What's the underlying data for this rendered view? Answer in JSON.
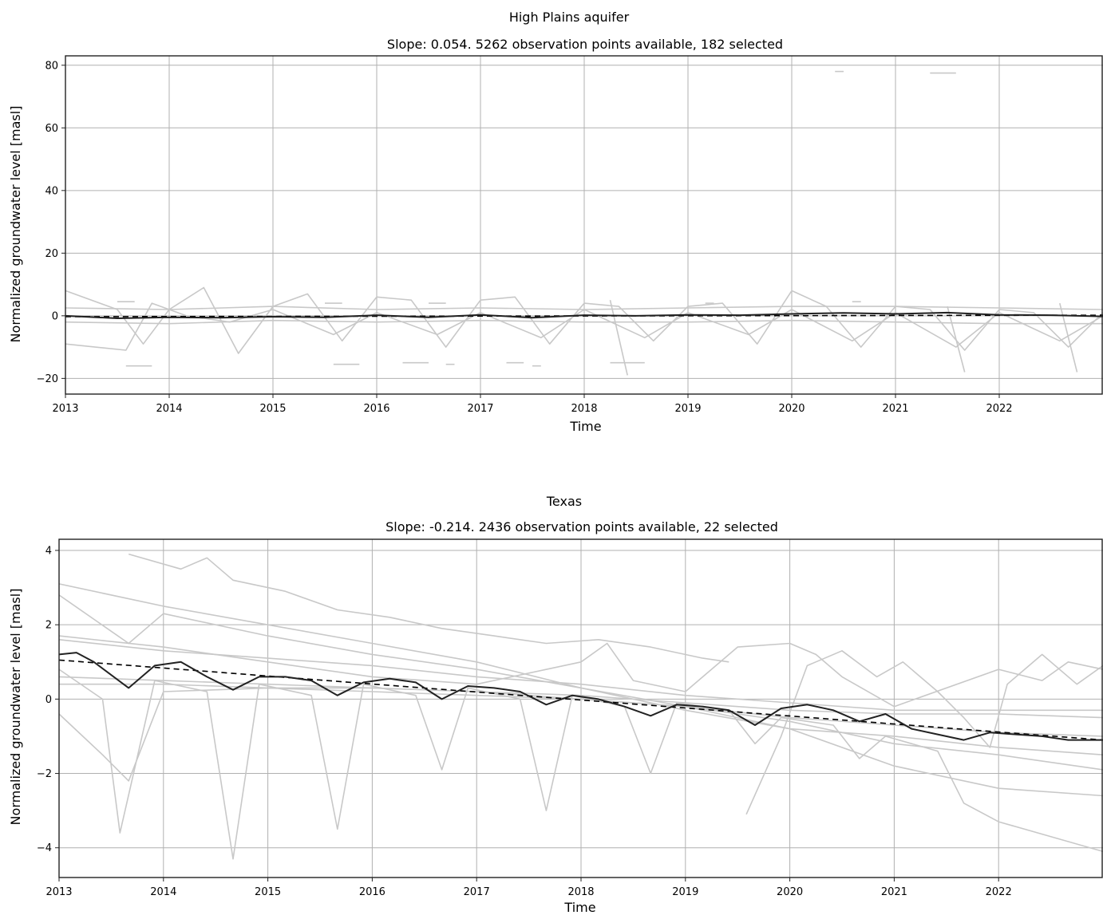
{
  "chart_data": [
    {
      "type": "line",
      "title": "High Plains aquifer",
      "subtitle": "Slope: 0.054. 5262 observation points available, 182 selected",
      "xlabel": "Time",
      "ylabel": "Normalized groundwater level [masl]",
      "x_ticks": [
        "2013",
        "2014",
        "2015",
        "2016",
        "2017",
        "2018",
        "2019",
        "2020",
        "2021",
        "2022"
      ],
      "y_ticks": [
        -20,
        0,
        20,
        40,
        60,
        80
      ],
      "xlim": [
        "2013-01",
        "2023-01"
      ],
      "ylim": [
        -25,
        83
      ],
      "grid": true,
      "colors": {
        "individual": "#c8c8c8",
        "mean": "#222222",
        "trend": "#000000"
      },
      "series": [
        {
          "role": "mean",
          "x": [
            "2013-01",
            "2013-07",
            "2014-01",
            "2014-07",
            "2015-01",
            "2015-07",
            "2016-01",
            "2016-07",
            "2017-01",
            "2017-07",
            "2018-01",
            "2018-07",
            "2019-01",
            "2019-07",
            "2020-01",
            "2020-07",
            "2021-01",
            "2021-07",
            "2022-01",
            "2022-07",
            "2023-01"
          ],
          "values": [
            0.0,
            -0.8,
            -0.5,
            -0.6,
            -0.3,
            -0.5,
            0.2,
            -0.5,
            0.3,
            -0.6,
            0.2,
            0.0,
            0.3,
            0.2,
            0.6,
            0.9,
            0.6,
            1.0,
            0.3,
            0.2,
            -0.2
          ]
        },
        {
          "role": "trend",
          "x": [
            "2013-01",
            "2023-01"
          ],
          "values": [
            -0.3,
            0.2
          ]
        },
        {
          "role": "individual",
          "x": [
            "2013-01",
            "2013-07",
            "2013-10",
            "2014-01",
            "2014-05",
            "2014-09",
            "2015-01",
            "2015-05",
            "2015-09",
            "2016-01",
            "2016-05",
            "2016-09",
            "2017-01",
            "2017-05",
            "2017-09",
            "2018-01",
            "2018-05",
            "2018-09",
            "2019-01",
            "2019-05",
            "2019-09",
            "2020-01",
            "2020-05",
            "2020-09",
            "2021-01",
            "2021-05",
            "2021-09",
            "2022-01",
            "2022-05",
            "2022-09",
            "2023-01"
          ],
          "values": [
            8.0,
            2.0,
            -9.0,
            2.0,
            9.0,
            -12.0,
            3.0,
            7.0,
            -8.0,
            6.0,
            5.0,
            -10.0,
            5.0,
            6.0,
            -9.0,
            4.0,
            3.0,
            -8.0,
            3.0,
            4.0,
            -9.0,
            8.0,
            3.0,
            -10.0,
            3.0,
            2.0,
            -11.0,
            2.0,
            1.0,
            -10.0,
            1.0
          ]
        },
        {
          "role": "individual",
          "x": [
            "2013-01",
            "2013-08",
            "2013-11",
            "2014-03",
            "2014-08",
            "2015-01",
            "2015-08",
            "2016-01",
            "2016-08",
            "2017-01",
            "2017-08",
            "2018-01",
            "2018-08",
            "2019-01",
            "2019-08",
            "2020-01",
            "2020-08",
            "2021-01",
            "2021-08",
            "2022-01",
            "2022-08",
            "2023-01"
          ],
          "values": [
            -9.0,
            -11.0,
            4.0,
            0.0,
            -2.0,
            2.0,
            -6.0,
            1.0,
            -6.0,
            1.0,
            -7.0,
            2.0,
            -7.0,
            1.0,
            -6.0,
            2.0,
            -8.0,
            1.0,
            -10.0,
            1.0,
            -8.0,
            0.0
          ]
        },
        {
          "role": "individual",
          "x": [
            "2013-01",
            "2014-01",
            "2015-01",
            "2016-01",
            "2017-01",
            "2018-01",
            "2019-01",
            "2020-01",
            "2021-01",
            "2022-01",
            "2023-01"
          ],
          "values": [
            2.5,
            2.0,
            3.0,
            2.0,
            2.5,
            2.0,
            2.5,
            3.0,
            3.0,
            2.5,
            2.0
          ]
        },
        {
          "role": "individual",
          "x": [
            "2013-01",
            "2014-01",
            "2015-01",
            "2016-01",
            "2017-01",
            "2018-01",
            "2019-01",
            "2020-01",
            "2021-01",
            "2022-01",
            "2023-01"
          ],
          "values": [
            -2.0,
            -2.5,
            -1.5,
            -2.0,
            -1.5,
            -2.0,
            -2.0,
            -1.5,
            -2.0,
            -2.5,
            -2.5
          ]
        },
        {
          "role": "individual",
          "x": [
            "2018-04",
            "2018-06"
          ],
          "values": [
            5.0,
            -19.0
          ]
        },
        {
          "role": "individual",
          "x": [
            "2021-07",
            "2021-09"
          ],
          "values": [
            3.0,
            -18.0
          ]
        },
        {
          "role": "individual",
          "x": [
            "2022-08",
            "2022-10"
          ],
          "values": [
            4.0,
            -18.0
          ]
        },
        {
          "role": "fragments",
          "segments": [
            {
              "x": [
                "2013-08",
                "2013-11"
              ],
              "values": [
                -16.0,
                -16.0
              ]
            },
            {
              "x": [
                "2015-08",
                "2015-11"
              ],
              "values": [
                -15.5,
                -15.5
              ]
            },
            {
              "x": [
                "2016-04",
                "2016-07"
              ],
              "values": [
                -15.0,
                -15.0
              ]
            },
            {
              "x": [
                "2016-09",
                "2016-10"
              ],
              "values": [
                -15.5,
                -15.5
              ]
            },
            {
              "x": [
                "2017-04",
                "2017-06"
              ],
              "values": [
                -15.0,
                -15.0
              ]
            },
            {
              "x": [
                "2017-07",
                "2017-08"
              ],
              "values": [
                -16.0,
                -16.0
              ]
            },
            {
              "x": [
                "2018-04",
                "2018-08"
              ],
              "values": [
                -15.0,
                -15.0
              ]
            },
            {
              "x": [
                "2020-06",
                "2020-07"
              ],
              "values": [
                78.0,
                78.0
              ]
            },
            {
              "x": [
                "2021-05",
                "2021-08"
              ],
              "values": [
                77.5,
                77.5
              ]
            },
            {
              "x": [
                "2013-07",
                "2013-09"
              ],
              "values": [
                4.5,
                4.5
              ]
            },
            {
              "x": [
                "2015-07",
                "2015-09"
              ],
              "values": [
                4.0,
                4.0
              ]
            },
            {
              "x": [
                "2016-07",
                "2016-09"
              ],
              "values": [
                4.0,
                4.0
              ]
            },
            {
              "x": [
                "2019-03",
                "2019-04"
              ],
              "values": [
                4.0,
                4.0
              ]
            },
            {
              "x": [
                "2020-08",
                "2020-09"
              ],
              "values": [
                4.5,
                4.5
              ]
            }
          ]
        }
      ]
    },
    {
      "type": "line",
      "title": "Texas",
      "subtitle": "Slope: -0.214. 2436 observation points available, 22 selected",
      "xlabel": "Time",
      "ylabel": "Normalized groundwater level [masl]",
      "x_ticks": [
        "2013",
        "2014",
        "2015",
        "2016",
        "2017",
        "2018",
        "2019",
        "2020",
        "2021",
        "2022"
      ],
      "y_ticks": [
        -4,
        -2,
        0,
        2,
        4
      ],
      "xlim": [
        "2013-01",
        "2023-01"
      ],
      "ylim": [
        -4.8,
        4.3
      ],
      "grid": true,
      "colors": {
        "individual": "#c8c8c8",
        "mean": "#222222",
        "trend": "#000000"
      },
      "series": [
        {
          "role": "mean",
          "x": [
            "2013-01",
            "2013-03",
            "2013-05",
            "2013-09",
            "2013-12",
            "2014-03",
            "2014-06",
            "2014-09",
            "2014-12",
            "2015-03",
            "2015-06",
            "2015-09",
            "2015-12",
            "2016-03",
            "2016-06",
            "2016-09",
            "2016-12",
            "2017-03",
            "2017-06",
            "2017-09",
            "2017-12",
            "2018-03",
            "2018-06",
            "2018-09",
            "2018-12",
            "2019-03",
            "2019-06",
            "2019-09",
            "2019-12",
            "2020-03",
            "2020-06",
            "2020-09",
            "2020-12",
            "2021-03",
            "2021-06",
            "2021-09",
            "2021-12",
            "2022-03",
            "2022-06",
            "2022-09",
            "2023-01"
          ],
          "values": [
            1.2,
            1.25,
            1.0,
            0.3,
            0.9,
            1.0,
            0.6,
            0.25,
            0.6,
            0.6,
            0.5,
            0.1,
            0.45,
            0.55,
            0.45,
            0.0,
            0.35,
            0.3,
            0.2,
            -0.15,
            0.1,
            0.0,
            -0.2,
            -0.45,
            -0.15,
            -0.2,
            -0.3,
            -0.7,
            -0.25,
            -0.15,
            -0.3,
            -0.6,
            -0.4,
            -0.8,
            -0.95,
            -1.1,
            -0.9,
            -0.95,
            -1.0,
            -1.1,
            -1.1
          ]
        },
        {
          "role": "trend",
          "x": [
            "2013-01",
            "2023-01"
          ],
          "values": [
            1.05,
            -1.1
          ]
        },
        {
          "role": "individual",
          "x": [
            "2013-01",
            "2014-01",
            "2015-01",
            "2016-01",
            "2017-01",
            "2018-01",
            "2019-01",
            "2020-01",
            "2021-01",
            "2022-01",
            "2023-01"
          ],
          "values": [
            3.1,
            2.5,
            2.0,
            1.5,
            1.0,
            0.3,
            -0.3,
            -0.8,
            -1.0,
            -1.3,
            -1.5
          ]
        },
        {
          "role": "individual",
          "x": [
            "2013-09",
            "2014-03",
            "2014-06",
            "2014-09",
            "2015-03",
            "2015-09",
            "2016-03",
            "2016-09",
            "2017-03",
            "2017-09",
            "2018-03",
            "2018-09",
            "2019-03",
            "2019-06"
          ],
          "values": [
            3.9,
            3.5,
            3.8,
            3.2,
            2.9,
            2.4,
            2.2,
            1.9,
            1.7,
            1.5,
            1.6,
            1.4,
            1.1,
            1.0
          ]
        },
        {
          "role": "individual",
          "x": [
            "2013-01",
            "2013-09",
            "2014-01",
            "2015-01",
            "2016-01",
            "2017-01",
            "2018-01",
            "2019-01",
            "2020-01",
            "2021-01",
            "2022-01",
            "2023-01"
          ],
          "values": [
            2.8,
            1.5,
            2.3,
            1.7,
            1.2,
            0.8,
            0.3,
            -0.2,
            -0.8,
            -1.8,
            -2.4,
            -2.6
          ]
        },
        {
          "role": "individual",
          "x": [
            "2013-01",
            "2013-06",
            "2013-08",
            "2013-12",
            "2014-06",
            "2014-09",
            "2014-12",
            "2015-06",
            "2015-09",
            "2015-12",
            "2016-06",
            "2016-09",
            "2016-12",
            "2017-06",
            "2017-09",
            "2017-12",
            "2018-06",
            "2018-09",
            "2018-12",
            "2019-06",
            "2019-09",
            "2019-12",
            "2020-06",
            "2020-09",
            "2020-12",
            "2021-06",
            "2021-09",
            "2022-01",
            "2023-01"
          ],
          "values": [
            0.8,
            0.0,
            -3.6,
            0.5,
            0.2,
            -4.3,
            0.4,
            0.1,
            -3.5,
            0.4,
            0.1,
            -1.9,
            0.3,
            0.0,
            -3.0,
            0.1,
            -0.2,
            -2.0,
            -0.1,
            -0.3,
            -1.2,
            -0.5,
            -0.7,
            -1.6,
            -1.0,
            -1.4,
            -2.8,
            -3.3,
            -4.1
          ]
        },
        {
          "role": "individual",
          "x": [
            "2013-01",
            "2014-01",
            "2015-01",
            "2016-01",
            "2017-01",
            "2018-01",
            "2018-04",
            "2018-07",
            "2019-01",
            "2019-07",
            "2020-01",
            "2020-04",
            "2020-07",
            "2021-01",
            "2022-01",
            "2022-06",
            "2022-09",
            "2023-01"
          ],
          "values": [
            1.7,
            1.4,
            1.0,
            0.6,
            0.4,
            1.0,
            1.5,
            0.5,
            0.2,
            1.4,
            1.5,
            1.2,
            0.6,
            -0.2,
            0.8,
            0.5,
            1.0,
            0.8
          ]
        },
        {
          "role": "individual",
          "x": [
            "2013-01",
            "2014-01",
            "2015-01",
            "2016-01",
            "2017-01",
            "2018-01",
            "2019-01",
            "2020-01",
            "2021-01",
            "2022-01",
            "2023-01"
          ],
          "values": [
            0.4,
            0.4,
            0.3,
            0.3,
            0.2,
            0.1,
            -0.1,
            -0.3,
            -0.4,
            -0.4,
            -0.5
          ]
        },
        {
          "role": "individual",
          "x": [
            "2013-01",
            "2014-01",
            "2015-01",
            "2016-01",
            "2017-01",
            "2018-01",
            "2019-01",
            "2020-01",
            "2021-01",
            "2022-01",
            "2023-01"
          ],
          "values": [
            0.6,
            0.5,
            0.4,
            0.3,
            0.2,
            0.0,
            -0.2,
            -0.5,
            -0.7,
            -0.9,
            -1.0
          ]
        },
        {
          "role": "individual",
          "x": [
            "2013-01",
            "2014-01",
            "2015-01",
            "2016-01",
            "2017-01",
            "2018-01",
            "2019-01",
            "2020-01",
            "2021-01",
            "2022-01",
            "2023-01"
          ],
          "values": [
            1.6,
            1.3,
            1.1,
            0.9,
            0.6,
            0.4,
            0.1,
            -0.1,
            -0.3,
            -0.3,
            -0.3
          ]
        },
        {
          "role": "individual",
          "x": [
            "2019-08",
            "2019-12",
            "2020-03",
            "2020-07",
            "2020-11",
            "2021-02",
            "2021-06",
            "2021-09",
            "2021-12",
            "2022-02",
            "2022-06",
            "2022-10",
            "2023-01"
          ],
          "values": [
            -3.1,
            -1.0,
            0.9,
            1.3,
            0.6,
            1.0,
            0.2,
            -0.5,
            -1.3,
            0.4,
            1.2,
            0.4,
            0.9
          ]
        },
        {
          "role": "individual",
          "x": [
            "2013-01",
            "2013-06",
            "2013-09",
            "2014-01",
            "2015-01",
            "2016-01",
            "2017-01",
            "2018-01",
            "2019-01",
            "2020-01",
            "2021-01",
            "2022-01",
            "2023-01"
          ],
          "values": [
            -0.4,
            -1.5,
            -2.2,
            0.2,
            0.3,
            0.2,
            0.1,
            0.0,
            -0.2,
            -0.6,
            -1.2,
            -1.5,
            -1.9
          ]
        }
      ]
    }
  ]
}
